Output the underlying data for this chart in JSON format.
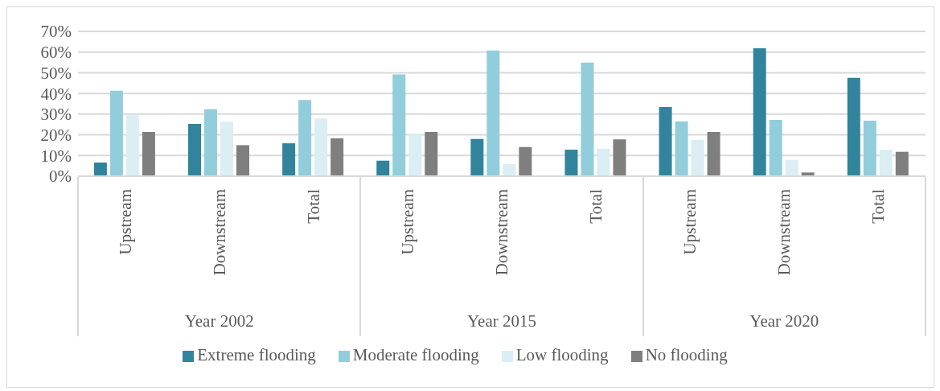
{
  "chart_data": {
    "type": "bar",
    "categories": [
      "Upstream",
      "Downstream",
      "Total",
      "Upstream",
      "Downstream",
      "Total",
      "Upstream",
      "Downstream",
      "Total"
    ],
    "annotations": [
      "Year 2002",
      "Year 2015",
      "Year 2020"
    ],
    "series": [
      {
        "name": "Extreme flooding",
        "color": "#31849b",
        "values": [
          6.6,
          25.3,
          15.9,
          7.5,
          18.0,
          12.8,
          33.4,
          61.8,
          47.5
        ]
      },
      {
        "name": "Moderate flooding",
        "color": "#92cddc",
        "values": [
          41.3,
          32.4,
          36.8,
          49.2,
          60.8,
          54.9,
          26.4,
          27.2,
          26.8
        ]
      },
      {
        "name": "Low flooding",
        "color": "#daeef3",
        "values": [
          29.5,
          26.3,
          27.9,
          20.5,
          5.8,
          13.3,
          17.5,
          7.9,
          12.8
        ]
      },
      {
        "name": "No flooding",
        "color": "#7f7f7f",
        "values": [
          21.4,
          15.0,
          18.3,
          21.4,
          14.1,
          17.8,
          21.4,
          1.8,
          11.8
        ]
      }
    ],
    "ylim": [
      0,
      70
    ],
    "yticks": [
      {
        "value": 0,
        "label": "0%"
      },
      {
        "value": 10,
        "label": "10%"
      },
      {
        "value": 20,
        "label": "20%"
      },
      {
        "value": 30,
        "label": "30%"
      },
      {
        "value": 40,
        "label": "40%"
      },
      {
        "value": 50,
        "label": "50%"
      },
      {
        "value": 60,
        "label": "60%"
      },
      {
        "value": 70,
        "label": "70%"
      }
    ],
    "grid": "y",
    "legend": "bottom"
  }
}
